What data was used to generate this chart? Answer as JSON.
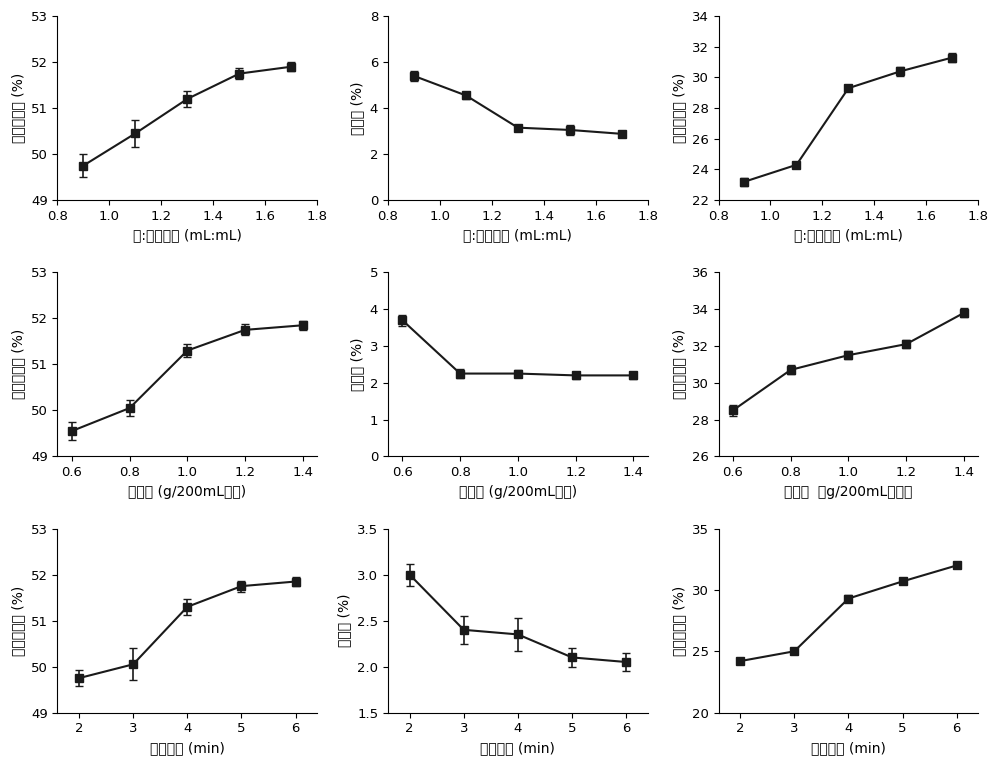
{
  "subplots": [
    {
      "row": 0,
      "col": 0,
      "x": [
        0.9,
        1.1,
        1.3,
        1.5,
        1.7
      ],
      "y": [
        49.75,
        50.45,
        51.2,
        51.75,
        51.9
      ],
      "yerr": [
        0.25,
        0.3,
        0.18,
        0.12,
        0.1
      ],
      "xlabel": "水:米体积比 (mL:mL)",
      "ylabel": "水溶性指数 (%)",
      "xlim": [
        0.8,
        1.8
      ],
      "ylim": [
        49,
        53
      ],
      "yticks": [
        49,
        50,
        51,
        52,
        53
      ],
      "xticks": [
        0.8,
        1.0,
        1.2,
        1.4,
        1.6,
        1.8
      ],
      "xticklabels": [
        "0.8",
        "1.0",
        "1.2",
        "1.4",
        "1.6",
        "1.8"
      ]
    },
    {
      "row": 0,
      "col": 1,
      "x": [
        0.9,
        1.1,
        1.3,
        1.5,
        1.7
      ],
      "y": [
        5.4,
        4.55,
        3.15,
        3.05,
        2.88
      ],
      "yerr": [
        0.2,
        0.15,
        0.12,
        0.2,
        0.12
      ],
      "xlabel": "水:米体积比 (mL:mL)",
      "ylabel": "结块率 (%)",
      "xlim": [
        0.8,
        1.8
      ],
      "ylim": [
        0,
        8
      ],
      "yticks": [
        0,
        2,
        4,
        6,
        8
      ],
      "xticks": [
        0.8,
        1.0,
        1.2,
        1.4,
        1.6,
        1.8
      ],
      "xticklabels": [
        "0.8",
        "1.0",
        "1.2",
        "1.4",
        "1.6",
        "1.8"
      ]
    },
    {
      "row": 0,
      "col": 2,
      "x": [
        0.9,
        1.1,
        1.3,
        1.5,
        1.7
      ],
      "y": [
        23.2,
        24.3,
        29.3,
        30.4,
        31.3
      ],
      "yerr": [
        0.25,
        0.2,
        0.2,
        0.3,
        0.3
      ],
      "xlabel": "水:米体积比 (mL:mL)",
      "ylabel": "还原糖含量 (%)",
      "xlim": [
        0.8,
        1.8
      ],
      "ylim": [
        22,
        34
      ],
      "yticks": [
        22,
        24,
        26,
        28,
        30,
        32,
        34
      ],
      "xticks": [
        0.8,
        1.0,
        1.2,
        1.4,
        1.6,
        1.8
      ],
      "xticklabels": [
        "0.8",
        "1.0",
        "1.2",
        "1.4",
        "1.6",
        "1.8"
      ]
    },
    {
      "row": 1,
      "col": 0,
      "x": [
        0.6,
        0.8,
        1.0,
        1.2,
        1.4
      ],
      "y": [
        49.55,
        50.05,
        51.3,
        51.75,
        51.85
      ],
      "yerr": [
        0.2,
        0.18,
        0.15,
        0.12,
        0.1
      ],
      "xlabel": "加酶量 (g/200mL生米)",
      "ylabel": "水溶性指数 (%)",
      "xlim": [
        0.55,
        1.45
      ],
      "ylim": [
        49,
        53
      ],
      "yticks": [
        49,
        50,
        51,
        52,
        53
      ],
      "xticks": [
        0.6,
        0.8,
        1.0,
        1.2,
        1.4
      ],
      "xticklabels": [
        "0.6",
        "0.8",
        "1.0",
        "1.2",
        "1.4"
      ]
    },
    {
      "row": 1,
      "col": 1,
      "x": [
        0.6,
        0.8,
        1.0,
        1.2,
        1.4
      ],
      "y": [
        3.7,
        2.25,
        2.25,
        2.2,
        2.2
      ],
      "yerr": [
        0.15,
        0.12,
        0.1,
        0.1,
        0.1
      ],
      "xlabel": "加酶量 (g/200mL生米)",
      "ylabel": "结块率 (%)",
      "xlim": [
        0.55,
        1.45
      ],
      "ylim": [
        0,
        5
      ],
      "yticks": [
        0,
        1,
        2,
        3,
        4,
        5
      ],
      "xticks": [
        0.6,
        0.8,
        1.0,
        1.2,
        1.4
      ],
      "xticklabels": [
        "0.6",
        "0.8",
        "1.0",
        "1.2",
        "1.4"
      ]
    },
    {
      "row": 1,
      "col": 2,
      "x": [
        0.6,
        0.8,
        1.0,
        1.2,
        1.4
      ],
      "y": [
        28.5,
        30.7,
        31.5,
        32.1,
        33.8
      ],
      "yerr": [
        0.3,
        0.25,
        0.2,
        0.2,
        0.25
      ],
      "xlabel": "加酶量  （g/200mL生米）",
      "ylabel": "还原糖含量 (%)",
      "xlim": [
        0.55,
        1.45
      ],
      "ylim": [
        26,
        36
      ],
      "yticks": [
        26,
        28,
        30,
        32,
        34,
        36
      ],
      "xticks": [
        0.6,
        0.8,
        1.0,
        1.2,
        1.4
      ],
      "xticklabels": [
        "0.6",
        "0.8",
        "1.0",
        "1.2",
        "1.4"
      ]
    },
    {
      "row": 2,
      "col": 0,
      "x": [
        2,
        3,
        4,
        5,
        6
      ],
      "y": [
        49.75,
        50.05,
        51.3,
        51.75,
        51.85
      ],
      "yerr": [
        0.18,
        0.35,
        0.18,
        0.12,
        0.1
      ],
      "xlabel": "酶解时间 (min)",
      "ylabel": "水溶性指数 (%)",
      "xlim": [
        1.6,
        6.4
      ],
      "ylim": [
        49,
        53
      ],
      "yticks": [
        49,
        50,
        51,
        52,
        53
      ],
      "xticks": [
        2,
        3,
        4,
        5,
        6
      ],
      "xticklabels": [
        "2",
        "3",
        "4",
        "5",
        "6"
      ]
    },
    {
      "row": 2,
      "col": 1,
      "x": [
        2,
        3,
        4,
        5,
        6
      ],
      "y": [
        3.0,
        2.4,
        2.35,
        2.1,
        2.05
      ],
      "yerr": [
        0.12,
        0.15,
        0.18,
        0.1,
        0.1
      ],
      "xlabel": "酶解时间 (min)",
      "ylabel": "结块率 (%)",
      "xlim": [
        1.6,
        6.4
      ],
      "ylim": [
        1.5,
        3.5
      ],
      "yticks": [
        1.5,
        2.0,
        2.5,
        3.0,
        3.5
      ],
      "xticks": [
        2,
        3,
        4,
        5,
        6
      ],
      "xticklabels": [
        "2",
        "3",
        "4",
        "5",
        "6"
      ]
    },
    {
      "row": 2,
      "col": 2,
      "x": [
        2,
        3,
        4,
        5,
        6
      ],
      "y": [
        24.2,
        25.0,
        29.3,
        30.7,
        32.0
      ],
      "yerr": [
        0.2,
        0.2,
        0.3,
        0.25,
        0.2
      ],
      "xlabel": "酶解时间 (min)",
      "ylabel": "还原糖含量 (%)",
      "xlim": [
        1.6,
        6.4
      ],
      "ylim": [
        20,
        35
      ],
      "yticks": [
        20,
        25,
        30,
        35
      ],
      "xticks": [
        2,
        3,
        4,
        5,
        6
      ],
      "xticklabels": [
        "2",
        "3",
        "4",
        "5",
        "6"
      ]
    }
  ],
  "line_color": "#1a1a1a",
  "marker": "s",
  "markersize": 5.5,
  "linewidth": 1.5,
  "capsize": 3,
  "elinewidth": 1.2,
  "label_font_size": 10,
  "tick_font_size": 9.5
}
